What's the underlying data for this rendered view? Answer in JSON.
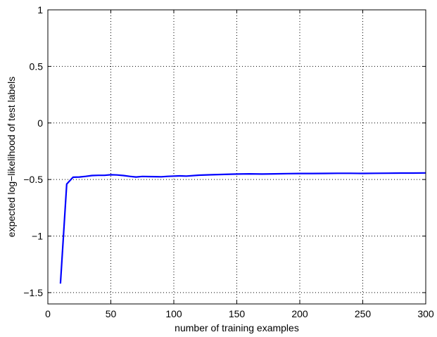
{
  "chart_data": {
    "type": "line",
    "title": "",
    "xlabel": "number of training examples",
    "ylabel": "expected log−likelihood of test labels",
    "xlim": [
      0,
      300
    ],
    "ylim": [
      -1.6,
      1
    ],
    "xticks": [
      0,
      50,
      100,
      150,
      200,
      250,
      300
    ],
    "xtick_labels": [
      "0",
      "50",
      "100",
      "150",
      "200",
      "250",
      "300"
    ],
    "yticks": [
      -1.5,
      -1,
      -0.5,
      0,
      0.5,
      1
    ],
    "ytick_labels": [
      "−1.5",
      "−1",
      "−0.5",
      "0",
      "0.5",
      "1"
    ],
    "grid": true,
    "line_color": "#0000ff",
    "series": [
      {
        "x": [
          10,
          15,
          20,
          25,
          30,
          35,
          40,
          45,
          50,
          55,
          60,
          65,
          70,
          75,
          80,
          85,
          90,
          95,
          100,
          105,
          110,
          120,
          130,
          140,
          150,
          160,
          170,
          180,
          190,
          200,
          210,
          220,
          230,
          240,
          250,
          260,
          270,
          280,
          290,
          300
        ],
        "y": [
          -1.42,
          -0.54,
          -0.48,
          -0.478,
          -0.472,
          -0.465,
          -0.463,
          -0.463,
          -0.458,
          -0.46,
          -0.465,
          -0.472,
          -0.478,
          -0.473,
          -0.474,
          -0.475,
          -0.476,
          -0.472,
          -0.47,
          -0.468,
          -0.47,
          -0.462,
          -0.458,
          -0.455,
          -0.452,
          -0.45,
          -0.452,
          -0.45,
          -0.448,
          -0.447,
          -0.447,
          -0.446,
          -0.445,
          -0.445,
          -0.446,
          -0.445,
          -0.444,
          -0.443,
          -0.443,
          -0.442
        ]
      }
    ]
  }
}
